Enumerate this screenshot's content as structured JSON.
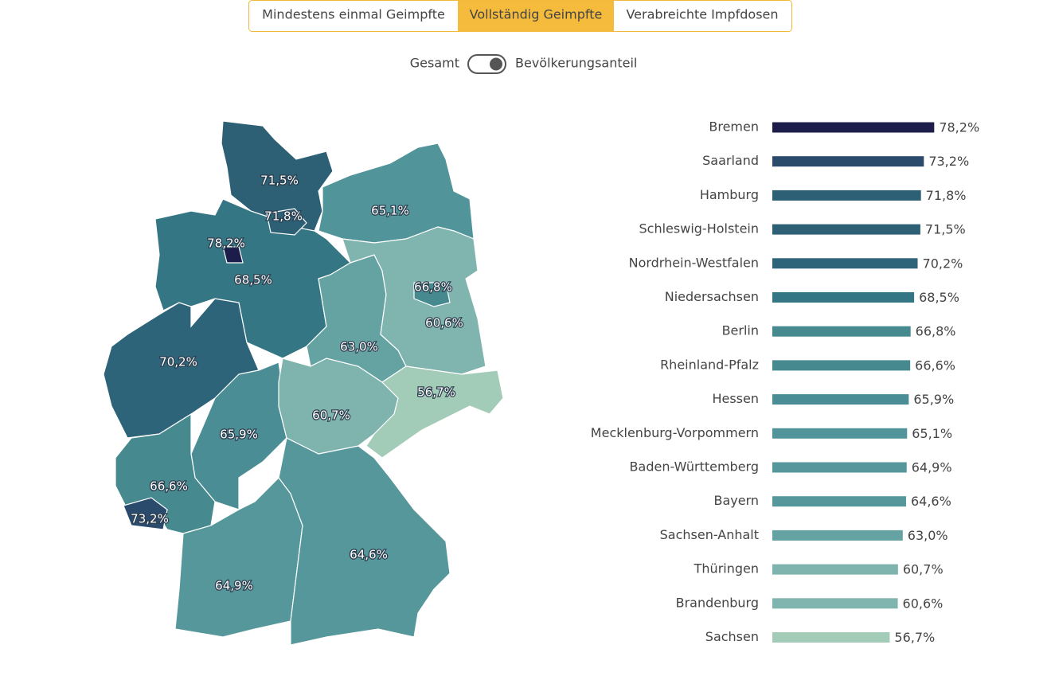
{
  "tabs": [
    "Mindestens einmal Geimpfte",
    "Vollständig Geimpfte",
    "Verabreichte Impfdosen"
  ],
  "active_tab": 1,
  "toggle": {
    "left": "Gesamt",
    "right": "Bevölkerungsanteil"
  },
  "chart_data": {
    "type": "bar",
    "orientation": "horizontal",
    "categories": [
      "Bremen",
      "Saarland",
      "Hamburg",
      "Schleswig-Holstein",
      "Nordrhein-Westfalen",
      "Niedersachsen",
      "Berlin",
      "Rheinland-Pfalz",
      "Hessen",
      "Mecklenburg-Vorpommern",
      "Baden-Württemberg",
      "Bayern",
      "Sachsen-Anhalt",
      "Thüringen",
      "Brandenburg",
      "Sachsen"
    ],
    "values": [
      78.2,
      73.2,
      71.8,
      71.5,
      70.2,
      68.5,
      66.8,
      66.6,
      65.9,
      65.1,
      64.9,
      64.6,
      63.0,
      60.7,
      60.6,
      56.7
    ],
    "value_labels": [
      "78,2%",
      "73,2%",
      "71,8%",
      "71,5%",
      "70,2%",
      "68,5%",
      "66,8%",
      "66,6%",
      "65,9%",
      "65,1%",
      "64,9%",
      "64,6%",
      "63,0%",
      "60,7%",
      "60,6%",
      "56,7%"
    ],
    "colors": [
      "#1c1d4b",
      "#2a4b6c",
      "#2d5f75",
      "#2d5f75",
      "#2e6479",
      "#357684",
      "#46898f",
      "#46898f",
      "#4a8d94",
      "#51949a",
      "#55979a",
      "#55979a",
      "#65a3a3",
      "#7fb3ad",
      "#80b4ae",
      "#a2cbb8"
    ],
    "xlim": [
      0,
      100
    ]
  }
}
